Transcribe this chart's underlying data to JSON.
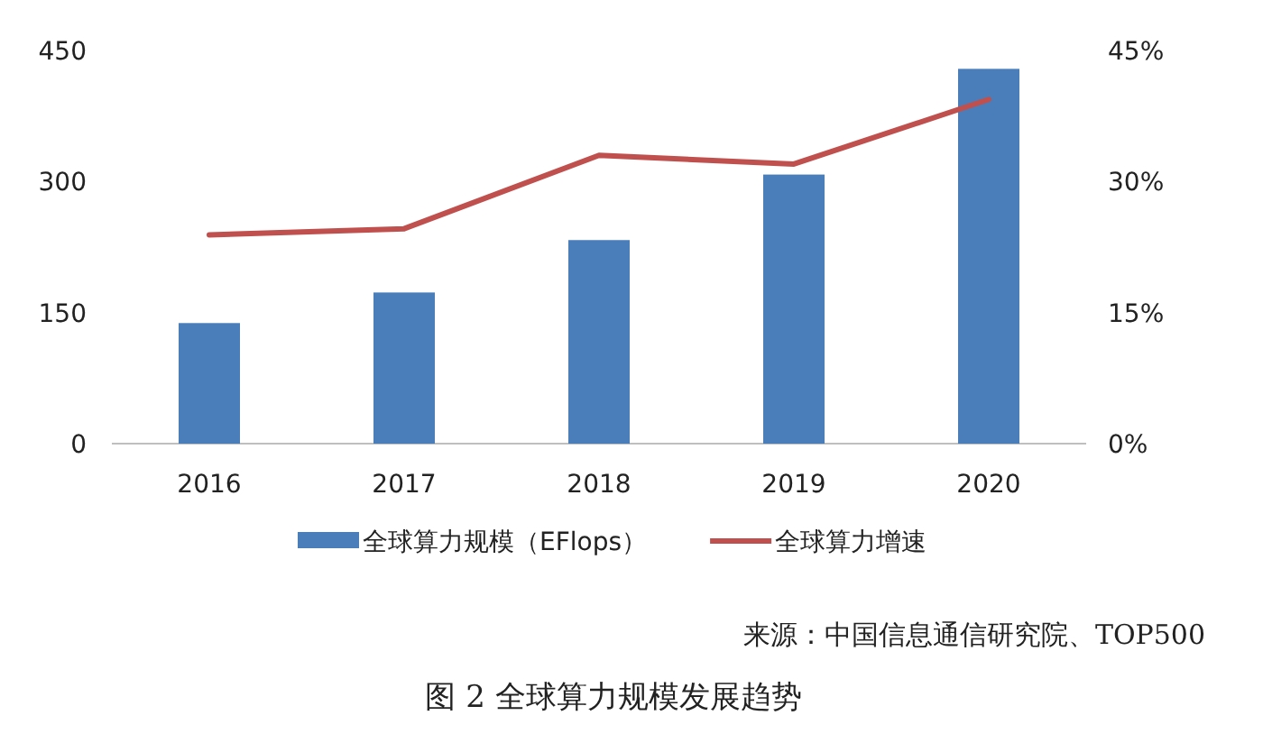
{
  "chart_data": {
    "type": "bar",
    "title": "图 2  全球算力规模发展趋势",
    "annotations": [
      "来源：中国信息通信研究院、TOP500"
    ],
    "categories": [
      "2016",
      "2017",
      "2018",
      "2019",
      "2020"
    ],
    "series": [
      {
        "name": "全球算力规模（EFlops）",
        "color": "#4a7ebb",
        "values": [
          138,
          173,
          233,
          308,
          429
        ]
      },
      {
        "name": "全球算力增速",
        "type": "line",
        "axis": "y2",
        "color": "#c0504d",
        "values": [
          23.9,
          24.6,
          33.0,
          32.0,
          39.4
        ]
      }
    ],
    "ylim": [
      0,
      450
    ],
    "yticks": [
      0,
      150,
      300,
      450
    ],
    "y2lim": [
      0,
      45
    ],
    "y2ticks": [
      {
        "value": 0,
        "label": "0%"
      },
      {
        "value": 15,
        "label": "15%"
      },
      {
        "value": 30,
        "label": "30%"
      },
      {
        "value": 45,
        "label": "45%"
      }
    ],
    "legend": "bottom"
  }
}
